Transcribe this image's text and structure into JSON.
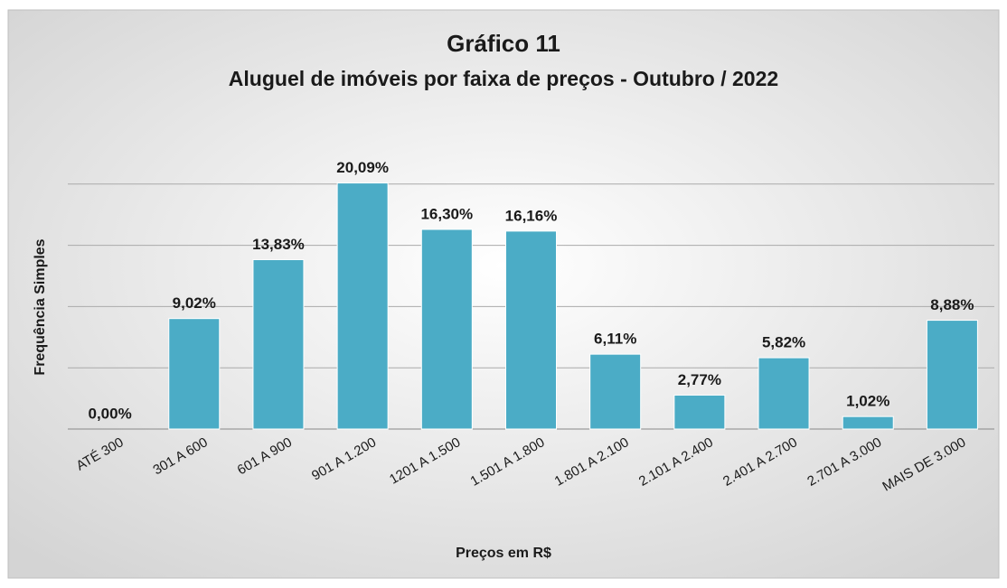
{
  "chart_data": {
    "type": "bar",
    "title": "Gráfico 11",
    "subtitle": "Aluguel de imóveis por faixa de preços  - Outubro / 2022",
    "x_label": "Preços em R$",
    "y_label": "Frequência Simples",
    "categories": [
      "ATÉ 300",
      "301 A 600",
      "601 A 900",
      "901 A 1.200",
      "1201 A 1.500",
      "1.501 A 1.800",
      "1.801 A 2.100",
      "2.101 A 2.400",
      "2.401 A 2.700",
      "2.701 A 3.000",
      "MAIS DE 3.000"
    ],
    "values": [
      0.0,
      9.02,
      13.83,
      20.09,
      16.3,
      16.16,
      6.11,
      2.77,
      5.82,
      1.02,
      8.88
    ],
    "value_labels": [
      "0,00%",
      "9,02%",
      "13,83%",
      "20,09%",
      "16,30%",
      "16,16%",
      "6,11%",
      "2,77%",
      "5,82%",
      "1,02%",
      "8,88%"
    ],
    "color": "#4bacc6",
    "ylim": [
      0,
      25
    ],
    "yticks": [
      0,
      5,
      10,
      15,
      20
    ],
    "grid": true
  }
}
